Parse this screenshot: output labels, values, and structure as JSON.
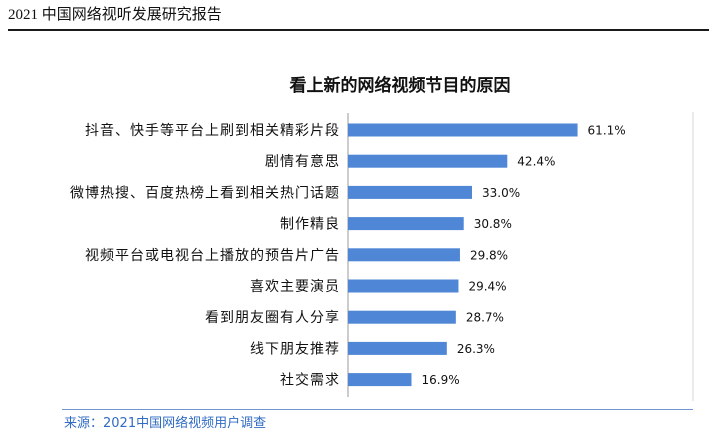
{
  "header": {
    "title": "2021 中国网络视听发展研究报告"
  },
  "footer": {
    "source": "来源：2021中国网络视频用户调查"
  },
  "colors": {
    "bar": "#4f86d6",
    "header_rule": "#1a1a1a",
    "footer_rule": "#6f97d2",
    "source_text": "#2f6bc2",
    "axis": "#9a9a9a",
    "frame": "#d4d4d4"
  },
  "chart_data": {
    "type": "bar",
    "orientation": "horizontal",
    "title": "看上新的网络视频节目的原因",
    "categories": [
      "抖音、快手等平台上刷到相关精彩片段",
      "剧情有意思",
      "微博热搜、百度热榜上看到相关热门话题",
      "制作精良",
      "视频平台或电视台上播放的预告片广告",
      "喜欢主要演员",
      "看到朋友圈有人分享",
      "线下朋友推荐",
      "社交需求"
    ],
    "values": [
      61.1,
      42.4,
      33.0,
      30.8,
      29.8,
      29.4,
      28.7,
      26.3,
      16.9
    ],
    "value_labels": [
      "61.1%",
      "42.4%",
      "33.0%",
      "30.8%",
      "29.8%",
      "29.4%",
      "28.7%",
      "26.3%",
      "16.9%"
    ],
    "xlim": [
      0,
      70
    ],
    "grid": false,
    "legend": "none"
  }
}
